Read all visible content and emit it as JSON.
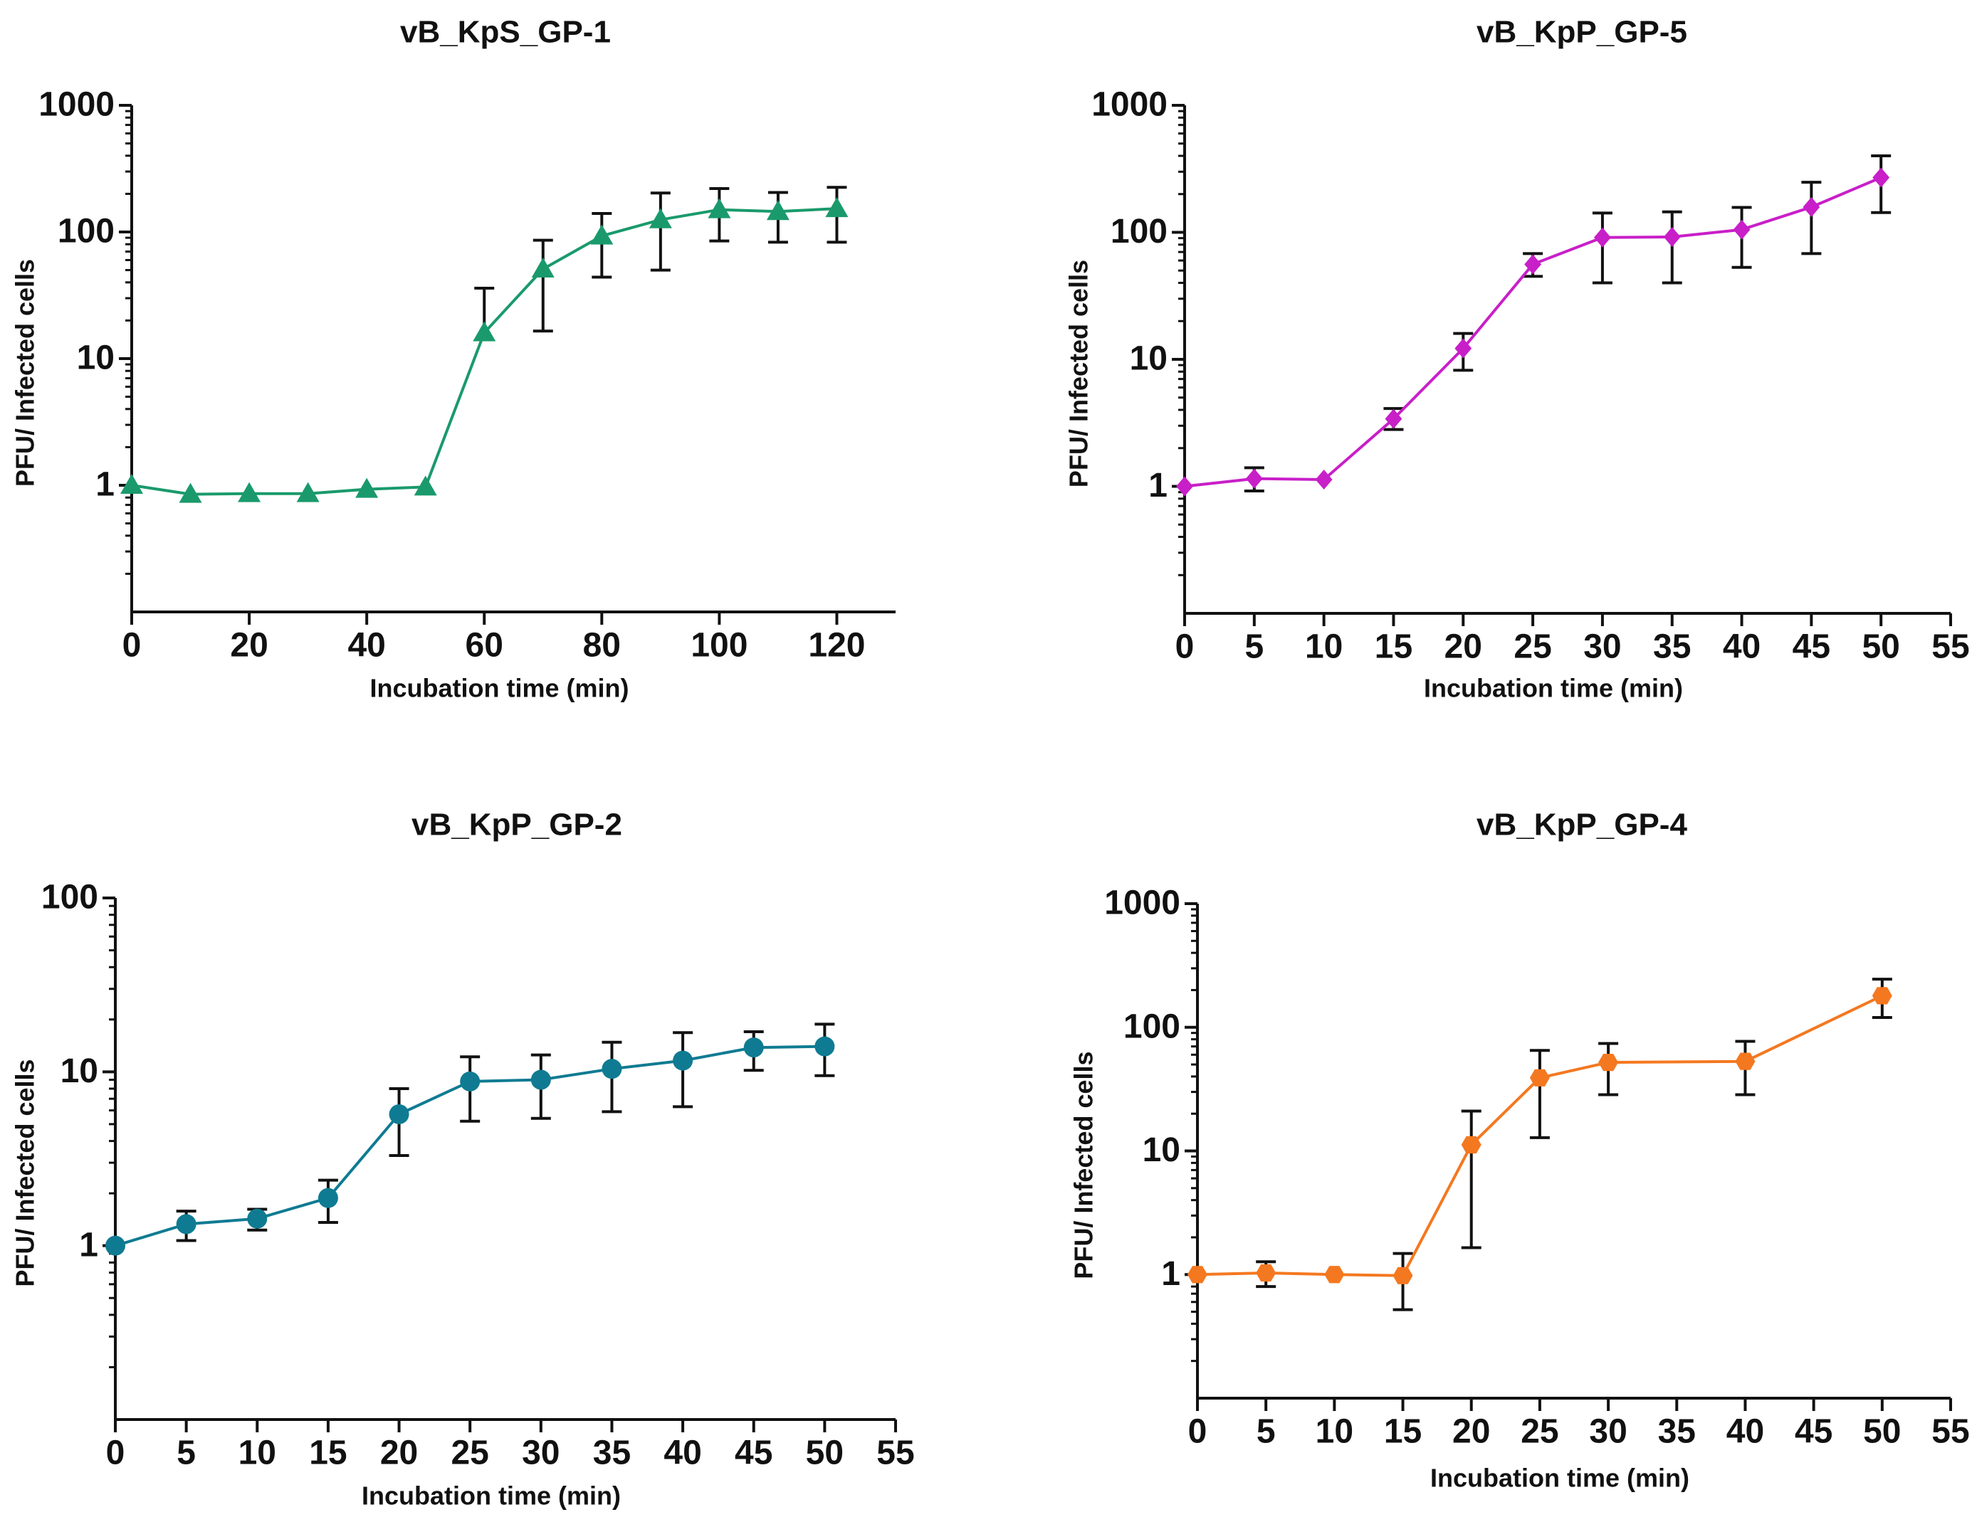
{
  "chart_data": [
    {
      "id": "gp1",
      "type": "line",
      "title": "vB_KpS_GP-1",
      "xlabel": "Incubation time (min)",
      "ylabel": "PFU/ Infected cells",
      "yscale": "log",
      "xlim": [
        0,
        130
      ],
      "ylim": [
        0.1,
        1000
      ],
      "xticks": [
        0,
        20,
        40,
        60,
        80,
        100,
        120
      ],
      "yticks": [
        1,
        10,
        100,
        1000
      ],
      "grid": false,
      "marker": "triangle",
      "color": "#1a9a6c",
      "x": [
        0,
        10,
        20,
        30,
        40,
        50,
        60,
        70,
        80,
        90,
        100,
        110,
        120
      ],
      "y": [
        1.0,
        0.85,
        0.86,
        0.86,
        0.93,
        0.97,
        16,
        51,
        93,
        125,
        150,
        145,
        153
      ],
      "err_upper": [
        null,
        null,
        null,
        null,
        null,
        null,
        36,
        86,
        140,
        203,
        220,
        205,
        225
      ],
      "err_lower": [
        null,
        null,
        null,
        null,
        null,
        null,
        null,
        16.5,
        44,
        50,
        85,
        83,
        83
      ]
    },
    {
      "id": "gp5",
      "type": "line",
      "title": "vB_KpP_GP-5",
      "xlabel": "Incubation time (min)",
      "ylabel": "PFU/ Infected cells",
      "yscale": "log",
      "xlim": [
        0,
        55
      ],
      "ylim": [
        0.1,
        1000
      ],
      "xticks": [
        0,
        5,
        10,
        15,
        20,
        25,
        30,
        35,
        40,
        45,
        50,
        55
      ],
      "yticks": [
        1,
        10,
        100,
        1000
      ],
      "grid": false,
      "marker": "diamond",
      "color": "#c81fc8",
      "x": [
        0,
        5,
        10,
        15,
        20,
        25,
        30,
        35,
        40,
        45,
        50
      ],
      "y": [
        1.0,
        1.15,
        1.13,
        3.4,
        12.2,
        56,
        91,
        92,
        105,
        158,
        270
      ],
      "err_upper": [
        null,
        1.4,
        null,
        4.1,
        16,
        68,
        142,
        145,
        157,
        248,
        400
      ],
      "err_lower": [
        null,
        0.92,
        null,
        2.8,
        8.2,
        45,
        40,
        40,
        53,
        68,
        143
      ]
    },
    {
      "id": "gp2",
      "type": "line",
      "title": "vB_KpP_GP-2",
      "xlabel": "Incubation time (min)",
      "ylabel": "PFU/ Infected cells",
      "yscale": "log",
      "xlim": [
        0,
        55
      ],
      "ylim": [
        0.1,
        100
      ],
      "xticks": [
        0,
        5,
        10,
        15,
        20,
        25,
        30,
        35,
        40,
        45,
        50,
        55
      ],
      "yticks": [
        1,
        10,
        100
      ],
      "grid": false,
      "marker": "circle",
      "color": "#0f7b92",
      "x": [
        0,
        5,
        10,
        15,
        20,
        25,
        30,
        35,
        40,
        45,
        50
      ],
      "y": [
        1.0,
        1.33,
        1.43,
        1.88,
        5.7,
        8.8,
        9.0,
        10.4,
        11.6,
        13.8,
        14.0
      ],
      "err_upper": [
        null,
        1.58,
        1.62,
        2.38,
        8.0,
        12.2,
        12.5,
        14.8,
        16.8,
        17.0,
        18.8
      ],
      "err_lower": [
        null,
        1.07,
        1.23,
        1.36,
        3.3,
        5.2,
        5.4,
        5.9,
        6.3,
        10.2,
        9.5
      ]
    },
    {
      "id": "gp4",
      "type": "line",
      "title": "vB_KpP_GP-4",
      "xlabel": "Incubation time (min)",
      "ylabel": "PFU/ Infected cells",
      "yscale": "log",
      "xlim": [
        0,
        55
      ],
      "ylim": [
        0.1,
        1000
      ],
      "xticks": [
        0,
        5,
        10,
        15,
        20,
        25,
        30,
        35,
        40,
        45,
        50,
        55
      ],
      "yticks": [
        1,
        10,
        100,
        1000
      ],
      "grid": false,
      "marker": "hexagon",
      "color": "#f47820",
      "x": [
        0,
        5,
        10,
        15,
        20,
        25,
        30,
        40,
        50
      ],
      "y": [
        1.0,
        1.03,
        1.0,
        0.98,
        11.2,
        39,
        52,
        53,
        180
      ],
      "err_upper": [
        null,
        1.27,
        null,
        1.48,
        21,
        65,
        74,
        77,
        245
      ],
      "err_lower": [
        null,
        0.8,
        null,
        0.52,
        1.65,
        12.8,
        28.5,
        28.5,
        120
      ]
    }
  ]
}
